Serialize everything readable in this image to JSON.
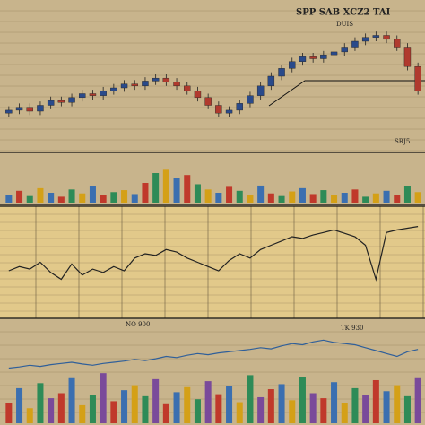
{
  "chart_data": [
    {
      "type": "candlestick",
      "title": "SPP SAB XCZ2 TAI",
      "annotations": [
        "DUIS",
        "SRJ5"
      ],
      "up_color": "#2a4a8a",
      "down_color": "#b03a2e",
      "ylim": [
        50,
        170
      ],
      "open": [
        72,
        75,
        78,
        74,
        80,
        85,
        83,
        88,
        92,
        90,
        95,
        98,
        102,
        100,
        105,
        108,
        104,
        100,
        95,
        88,
        80,
        72,
        75,
        82,
        90,
        100,
        110,
        118,
        125,
        130,
        128,
        132,
        135,
        140,
        146,
        150,
        152,
        148,
        140,
        120
      ],
      "close": [
        75,
        78,
        74,
        80,
        85,
        83,
        88,
        92,
        90,
        95,
        98,
        102,
        100,
        105,
        108,
        104,
        100,
        95,
        88,
        80,
        72,
        75,
        82,
        90,
        100,
        110,
        118,
        125,
        130,
        128,
        132,
        135,
        140,
        146,
        150,
        152,
        148,
        140,
        120,
        95
      ],
      "high": [
        79,
        82,
        82,
        84,
        89,
        89,
        92,
        96,
        96,
        99,
        102,
        106,
        106,
        109,
        112,
        112,
        108,
        104,
        99,
        92,
        84,
        79,
        86,
        94,
        104,
        114,
        122,
        129,
        134,
        134,
        136,
        139,
        144,
        150,
        154,
        156,
        156,
        152,
        144,
        124
      ],
      "low": [
        68,
        71,
        70,
        70,
        76,
        79,
        79,
        84,
        86,
        86,
        91,
        94,
        96,
        96,
        101,
        100,
        96,
        91,
        84,
        76,
        68,
        68,
        71,
        78,
        86,
        96,
        106,
        114,
        121,
        124,
        124,
        128,
        131,
        136,
        142,
        146,
        144,
        136,
        116,
        91
      ]
    },
    {
      "type": "bar",
      "colors": [
        "#3b6fb0",
        "#c0392b",
        "#2e8b57",
        "#d4a017"
      ],
      "ylim": [
        0,
        60
      ],
      "values": [
        12,
        18,
        10,
        22,
        15,
        9,
        20,
        14,
        25,
        11,
        16,
        19,
        13,
        30,
        45,
        50,
        38,
        42,
        28,
        20,
        15,
        24,
        18,
        12,
        26,
        14,
        10,
        17,
        22,
        13,
        19,
        11,
        15,
        20,
        9,
        14,
        18,
        12,
        25,
        16
      ]
    },
    {
      "type": "line",
      "color": "#222222",
      "annotations": [
        "NO 900",
        "TK 930"
      ],
      "ylim": [
        0,
        100
      ],
      "values": [
        40,
        45,
        42,
        50,
        38,
        30,
        48,
        35,
        42,
        38,
        45,
        40,
        55,
        60,
        58,
        65,
        62,
        55,
        50,
        45,
        40,
        52,
        60,
        55,
        65,
        70,
        75,
        80,
        78,
        82,
        85,
        88,
        84,
        80,
        70,
        30,
        85,
        88,
        90,
        92
      ]
    },
    {
      "type": "line",
      "color": "#2f5f9a",
      "ylim": [
        0,
        100
      ],
      "values": [
        30,
        32,
        35,
        33,
        36,
        38,
        40,
        37,
        35,
        38,
        40,
        42,
        45,
        43,
        46,
        50,
        48,
        52,
        55,
        53,
        56,
        58,
        60,
        62,
        65,
        63,
        68,
        72,
        70,
        75,
        78,
        74,
        72,
        70,
        65,
        60,
        55,
        50,
        58,
        62
      ]
    },
    {
      "type": "bar",
      "colors": [
        "#c0392b",
        "#3b6fb0",
        "#d4a017",
        "#2e8b57",
        "#7a4a9a"
      ],
      "ylim": [
        0,
        60
      ],
      "values": [
        20,
        35,
        15,
        40,
        25,
        30,
        45,
        18,
        28,
        50,
        22,
        33,
        38,
        27,
        44,
        19,
        31,
        36,
        24,
        42,
        29,
        37,
        21,
        48,
        26,
        34,
        39,
        23,
        46,
        30,
        25,
        41,
        20,
        35,
        28,
        43,
        32,
        38,
        27,
        45
      ]
    }
  ]
}
